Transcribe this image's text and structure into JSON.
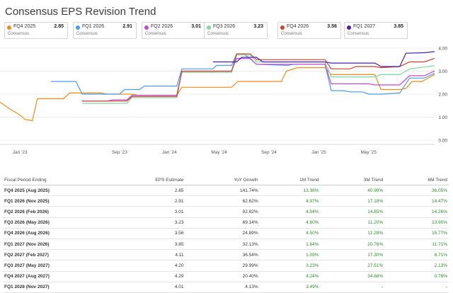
{
  "title": "Consensus EPS Revision Trend",
  "cards": [
    {
      "name": "FQ4 2025",
      "value": "2.85",
      "sub": "Consensus",
      "color": "#f08c1a"
    },
    {
      "name": "FQ1 2026",
      "value": "2.91",
      "sub": "Consensus",
      "color": "#4a9bf0"
    },
    {
      "name": "FQ2 2026",
      "value": "3.01",
      "sub": "Consensus",
      "color": "#c24ad1"
    },
    {
      "name": "FQ3 2026",
      "value": "3.23",
      "sub": "Consensus",
      "color": "#7fd6a0"
    },
    {
      "name": "FQ4 2026",
      "value": "3.56",
      "sub": "Consensus",
      "color": "#c8432f"
    },
    {
      "name": "FQ1 2027",
      "value": "3.85",
      "sub": "Consensus",
      "color": "#4a1fb0"
    }
  ],
  "chart_data": {
    "type": "line",
    "xlabels": [
      "Jan '23",
      "Sep '23",
      "Jan '24",
      "May '24",
      "Sep '24",
      "Jan '25",
      "May '25"
    ],
    "xlabel_pos": [
      0,
      8,
      12,
      16,
      20,
      24,
      28
    ],
    "x_range": [
      -1.6,
      33.3
    ],
    "ylim": [
      0,
      4
    ],
    "yticks": [
      "0.00",
      "1.00",
      "2.00",
      "3.00",
      "4.00"
    ],
    "grid": true,
    "series": [
      {
        "name": "FQ4 2025",
        "color": "#f08c1a",
        "points": [
          [
            -1.6,
            1.65
          ],
          [
            -0.8,
            1.35
          ],
          [
            0,
            1.1
          ],
          [
            0.4,
            0.9
          ],
          [
            1.0,
            0.85
          ],
          [
            1.4,
            1.8
          ],
          [
            3.5,
            1.8
          ],
          [
            4.0,
            2.05
          ],
          [
            6.5,
            2.05
          ],
          [
            7.0,
            2.0
          ],
          [
            9.0,
            2.0
          ],
          [
            9.5,
            1.95
          ],
          [
            12.6,
            1.95
          ],
          [
            13.0,
            2.3
          ],
          [
            17.0,
            2.3
          ],
          [
            17.5,
            2.55
          ],
          [
            21.0,
            2.55
          ],
          [
            21.4,
            3.0
          ],
          [
            22.3,
            3.15
          ],
          [
            24.5,
            3.15
          ],
          [
            25.0,
            2.85
          ],
          [
            28.5,
            2.85
          ],
          [
            29.0,
            2.2
          ],
          [
            30.5,
            2.2
          ],
          [
            31.0,
            2.25
          ],
          [
            31.5,
            2.55
          ],
          [
            32.3,
            2.55
          ],
          [
            33.3,
            2.85
          ]
        ]
      },
      {
        "name": "FQ1 2026",
        "color": "#4a9bf0",
        "points": [
          [
            2.5,
            2.55
          ],
          [
            4.5,
            2.55
          ],
          [
            5.0,
            2.0
          ],
          [
            8.0,
            2.0
          ],
          [
            8.4,
            2.2
          ],
          [
            9.6,
            2.2
          ],
          [
            10.0,
            2.35
          ],
          [
            12.6,
            2.35
          ],
          [
            13.0,
            3.1
          ],
          [
            15.5,
            3.1
          ],
          [
            15.8,
            3.25
          ],
          [
            17.0,
            3.25
          ],
          [
            17.4,
            3.75
          ],
          [
            18.0,
            3.75
          ],
          [
            19.0,
            3.3
          ],
          [
            21.5,
            3.25
          ],
          [
            22.0,
            3.3
          ],
          [
            24.5,
            3.3
          ],
          [
            25.0,
            2.15
          ],
          [
            26.0,
            2.15
          ],
          [
            26.5,
            2.1
          ],
          [
            27.5,
            2.1
          ],
          [
            28.0,
            2.0
          ],
          [
            29.0,
            2.0
          ],
          [
            30.5,
            2.05
          ],
          [
            31.3,
            2.7
          ],
          [
            32.5,
            2.7
          ],
          [
            33.3,
            2.91
          ]
        ]
      },
      {
        "name": "FQ2 2026",
        "color": "#c24ad1",
        "points": [
          [
            5.0,
            1.7
          ],
          [
            7.0,
            1.7
          ],
          [
            7.5,
            1.75
          ],
          [
            8.6,
            1.75
          ],
          [
            9.0,
            1.95
          ],
          [
            12.6,
            1.95
          ],
          [
            13.0,
            3.0
          ],
          [
            17.0,
            3.0
          ],
          [
            17.4,
            3.55
          ],
          [
            18.5,
            3.55
          ],
          [
            19.0,
            3.3
          ],
          [
            24.5,
            3.3
          ],
          [
            25.0,
            2.45
          ],
          [
            28.0,
            2.45
          ],
          [
            28.5,
            2.4
          ],
          [
            30.5,
            2.4
          ],
          [
            31.3,
            2.8
          ],
          [
            32.5,
            2.8
          ],
          [
            33.3,
            3.01
          ]
        ]
      },
      {
        "name": "FQ3 2026",
        "color": "#7fd6a0",
        "points": [
          [
            5.0,
            1.6
          ],
          [
            8.6,
            1.6
          ],
          [
            9.0,
            1.85
          ],
          [
            12.6,
            1.85
          ],
          [
            13.0,
            2.95
          ],
          [
            17.0,
            2.95
          ],
          [
            17.4,
            3.7
          ],
          [
            18.5,
            3.7
          ],
          [
            19.0,
            3.4
          ],
          [
            24.5,
            3.4
          ],
          [
            25.0,
            2.75
          ],
          [
            28.5,
            2.75
          ],
          [
            29.0,
            2.85
          ],
          [
            30.5,
            2.85
          ],
          [
            31.3,
            3.1
          ],
          [
            33.3,
            3.23
          ]
        ]
      },
      {
        "name": "FQ4 2026",
        "color": "#c8432f",
        "points": [
          [
            5.0,
            1.7
          ],
          [
            8.6,
            1.7
          ],
          [
            9.0,
            1.9
          ],
          [
            12.6,
            1.9
          ],
          [
            13.0,
            3.0
          ],
          [
            17.0,
            3.0
          ],
          [
            17.4,
            3.75
          ],
          [
            18.5,
            3.75
          ],
          [
            19.0,
            3.5
          ],
          [
            24.5,
            3.5
          ],
          [
            25.0,
            3.1
          ],
          [
            26.5,
            3.1
          ],
          [
            27.0,
            3.2
          ],
          [
            28.5,
            3.2
          ],
          [
            29.0,
            3.15
          ],
          [
            30.5,
            3.2
          ],
          [
            31.3,
            3.4
          ],
          [
            32.5,
            3.4
          ],
          [
            33.3,
            3.56
          ]
        ]
      },
      {
        "name": "FQ1 2027",
        "color": "#4a1fb0",
        "points": [
          [
            15.5,
            3.4
          ],
          [
            17.4,
            3.4
          ],
          [
            17.8,
            3.6
          ],
          [
            19.0,
            3.6
          ],
          [
            19.5,
            3.4
          ],
          [
            24.5,
            3.4
          ],
          [
            25.0,
            3.35
          ],
          [
            28.5,
            3.35
          ],
          [
            29.0,
            3.2
          ],
          [
            30.5,
            3.2
          ],
          [
            31.0,
            3.78
          ],
          [
            32.5,
            3.8
          ],
          [
            33.3,
            3.85
          ]
        ]
      }
    ]
  },
  "table": {
    "headers": [
      "Fiscal Period Ending",
      "EPS Estimate",
      "YoY Growth",
      "1M Trend",
      "3M Trend",
      "6M Trend"
    ],
    "rows": [
      [
        "FQ4 2025 (Aug 2025)",
        "2.85",
        "141.74%",
        "13.38%",
        "40.99%",
        "36.05%"
      ],
      [
        "FQ1 2026 (Nov 2025)",
        "2.91",
        "62.62%",
        "4.97%",
        "17.18%",
        "14.47%"
      ],
      [
        "FQ2 2026 (Feb 2026)",
        "3.01",
        "92.82%",
        "4.54%",
        "14.85%",
        "14.26%"
      ],
      [
        "FQ3 2026 (May 2026)",
        "3.23",
        "69.14%",
        "4.60%",
        "11.20%",
        "13.90%"
      ],
      [
        "FQ4 2026 (Aug 2026)",
        "3.56",
        "24.89%",
        "4.50%",
        "12.28%",
        "15.77%"
      ],
      [
        "FQ1 2027 (Nov 2026)",
        "3.85",
        "32.13%",
        "1.64%",
        "20.76%",
        "11.71%"
      ],
      [
        "FQ2 2027 (Feb 2027)",
        "4.11",
        "36.54%",
        "1.09%",
        "17.30%",
        "8.71%"
      ],
      [
        "FQ3 2027 (May 2027)",
        "4.20",
        "29.99%",
        "3.23%",
        "27.51%",
        "2.13%"
      ],
      [
        "FQ4 2027 (Aug 2027)",
        "4.29",
        "20.40%",
        "4.24%",
        "34.68%",
        "0.78%"
      ],
      [
        "FQ1 2028 (Nov 2027)",
        "4.01",
        "4.13%",
        "3.49%",
        "-",
        "-"
      ]
    ]
  }
}
